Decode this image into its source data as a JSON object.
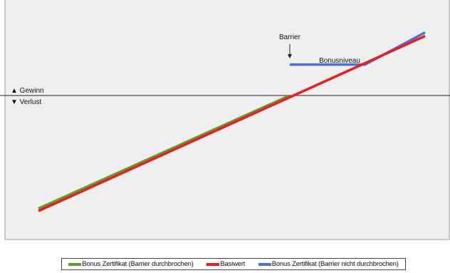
{
  "chart_data": {
    "type": "line",
    "title": "",
    "xlabel": "",
    "ylabel": "",
    "xlim": [
      0,
      100
    ],
    "ylim": [
      -100,
      100
    ],
    "grid": false,
    "legend_position": "bottom",
    "zero_line": true,
    "labels": {
      "gain": "▲ Gewinn",
      "loss": "▼ Verlust",
      "barrier": "Barrier",
      "bonus_level": "Bonusniveau"
    },
    "barrier_x": 65,
    "bonus_level_y": 26,
    "series": [
      {
        "name": "Bonus Zertifikat (Barrier durchbrochen)",
        "color": "#5a9e2f",
        "points": [
          [
            0,
            -95
          ],
          [
            65,
            0
          ]
        ]
      },
      {
        "name": "Basiwert",
        "color": "#ee1c1c",
        "points": [
          [
            0,
            -97
          ],
          [
            100,
            50
          ]
        ]
      },
      {
        "name": "Bonus Zertifikat (Barrier nicht durchbrochen)",
        "color": "#4a6fe0",
        "points": [
          [
            65,
            26
          ],
          [
            84.5,
            26
          ],
          [
            100,
            53
          ]
        ]
      }
    ]
  }
}
